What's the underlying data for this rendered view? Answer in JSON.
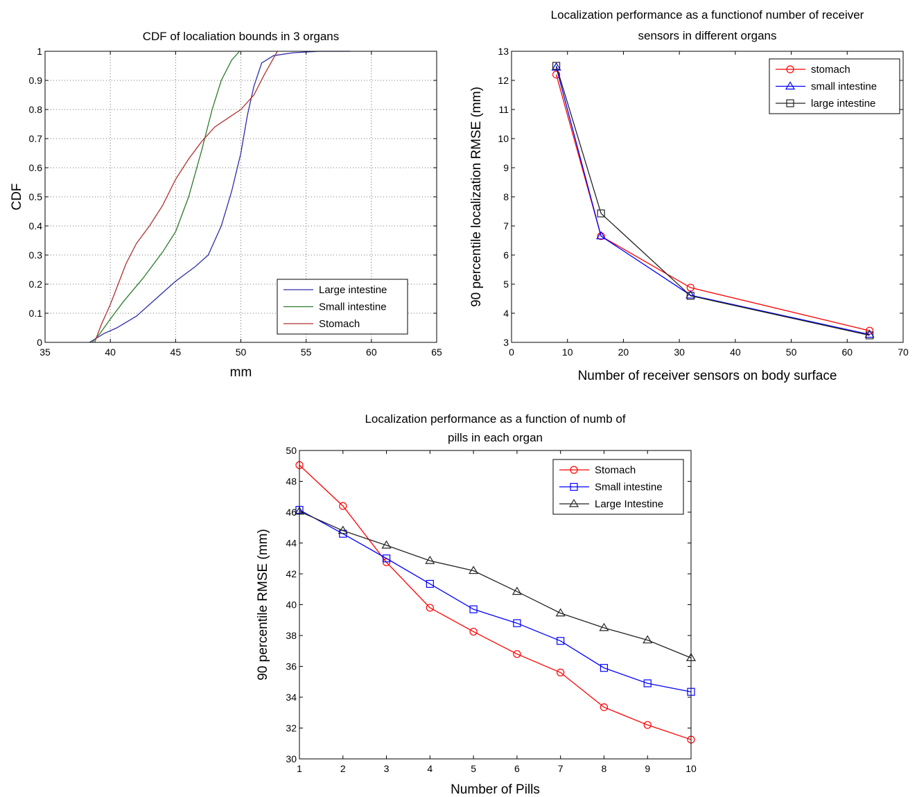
{
  "chart_data": [
    {
      "type": "line",
      "title": [
        "CDF of localiation bounds in 3 organs"
      ],
      "xlabel": "mm",
      "ylabel": "CDF",
      "xlim": [
        35,
        65
      ],
      "ylim": [
        0,
        1
      ],
      "xticks": [
        "35",
        "40",
        "45",
        "50",
        "55",
        "60",
        "65"
      ],
      "yticks": [
        "0",
        "0.1",
        "0.2",
        "0.3",
        "0.4",
        "0.5",
        "0.6",
        "0.7",
        "0.8",
        "0.9",
        "1"
      ],
      "grid": true,
      "legend_position": "bottom-right",
      "series": [
        {
          "name": "Large intestine",
          "color": "#2c2ca8",
          "marker": "none",
          "x": [
            38.4,
            39.5,
            40.5,
            42,
            43.5,
            45,
            46.5,
            47.5,
            48.5,
            49.3,
            50,
            50.5,
            51,
            51.6,
            52.5,
            54,
            56,
            58.4
          ],
          "y": [
            0,
            0.03,
            0.05,
            0.09,
            0.15,
            0.21,
            0.26,
            0.3,
            0.4,
            0.52,
            0.65,
            0.78,
            0.88,
            0.96,
            0.985,
            0.995,
            1,
            1
          ]
        },
        {
          "name": "Small intestine",
          "color": "#2a7a2a",
          "marker": "none",
          "x": [
            38.6,
            39.2,
            40,
            41,
            42.5,
            44,
            45,
            46,
            47,
            47.8,
            48.5,
            49.3,
            49.9
          ],
          "y": [
            0,
            0.03,
            0.08,
            0.14,
            0.22,
            0.31,
            0.38,
            0.5,
            0.66,
            0.8,
            0.9,
            0.97,
            1
          ]
        },
        {
          "name": "Stomach",
          "color": "#b03030",
          "marker": "none",
          "x": [
            38.8,
            39.3,
            40,
            40.6,
            41.2,
            42,
            43,
            44,
            45,
            46,
            47,
            48,
            49,
            50,
            51,
            51.8,
            52.8
          ],
          "y": [
            0,
            0.06,
            0.13,
            0.2,
            0.27,
            0.34,
            0.4,
            0.47,
            0.56,
            0.63,
            0.69,
            0.74,
            0.77,
            0.8,
            0.85,
            0.92,
            1
          ]
        }
      ]
    },
    {
      "type": "line",
      "title": [
        "Localization performance as a functionof number of receiver",
        "sensors in different organs"
      ],
      "xlabel": "Number of receiver sensors on body surface",
      "ylabel": "90 percentile localization RMSE (mm)",
      "xlim": [
        0,
        70
      ],
      "ylim": [
        3,
        13
      ],
      "xticks": [
        "0",
        "10",
        "20",
        "30",
        "40",
        "50",
        "60",
        "70"
      ],
      "yticks": [
        "3",
        "4",
        "5",
        "6",
        "7",
        "8",
        "9",
        "10",
        "11",
        "12",
        "13"
      ],
      "grid": false,
      "legend_position": "top-right",
      "series": [
        {
          "name": "stomach",
          "color": "#ff0000",
          "marker": "circle",
          "x": [
            8,
            16,
            32,
            64
          ],
          "y": [
            12.2,
            6.65,
            4.88,
            3.4
          ]
        },
        {
          "name": "small intestine",
          "color": "#0000ff",
          "marker": "triangle",
          "x": [
            8,
            16,
            32,
            64
          ],
          "y": [
            12.45,
            6.65,
            4.62,
            3.27
          ]
        },
        {
          "name": "large intestine",
          "color": "#222222",
          "marker": "square",
          "x": [
            8,
            16,
            32,
            64
          ],
          "y": [
            12.5,
            7.43,
            4.6,
            3.24
          ]
        }
      ]
    },
    {
      "type": "line",
      "title": [
        "Localization performance as a function of numb of",
        "pills in each organ"
      ],
      "xlabel": "Number of Pills",
      "ylabel": "90 percentile RMSE (mm)",
      "xlim": [
        1,
        10
      ],
      "ylim": [
        30,
        50
      ],
      "xticks": [
        "1",
        "2",
        "3",
        "4",
        "5",
        "6",
        "7",
        "8",
        "9",
        "10"
      ],
      "yticks": [
        "30",
        "32",
        "34",
        "36",
        "38",
        "40",
        "42",
        "44",
        "46",
        "48",
        "50"
      ],
      "grid": false,
      "legend_position": "top-right",
      "series": [
        {
          "name": "Stomach",
          "color": "#ff0000",
          "marker": "circle",
          "x": [
            1,
            2,
            3,
            4,
            5,
            6,
            7,
            8,
            9,
            10
          ],
          "y": [
            49.05,
            46.4,
            42.75,
            39.8,
            38.25,
            36.8,
            35.6,
            33.35,
            32.2,
            31.25
          ]
        },
        {
          "name": "Small intestine",
          "color": "#0000ff",
          "marker": "square",
          "x": [
            1,
            2,
            3,
            4,
            5,
            6,
            7,
            8,
            9,
            10
          ],
          "y": [
            46.15,
            44.6,
            43.0,
            41.35,
            39.7,
            38.8,
            37.65,
            35.9,
            34.9,
            34.35
          ]
        },
        {
          "name": "Large Intestine",
          "color": "#222222",
          "marker": "triangle",
          "x": [
            1,
            2,
            3,
            4,
            5,
            6,
            7,
            8,
            9,
            10
          ],
          "y": [
            46.05,
            44.8,
            43.85,
            42.85,
            42.2,
            40.85,
            39.45,
            38.5,
            37.7,
            36.55
          ]
        }
      ]
    }
  ]
}
